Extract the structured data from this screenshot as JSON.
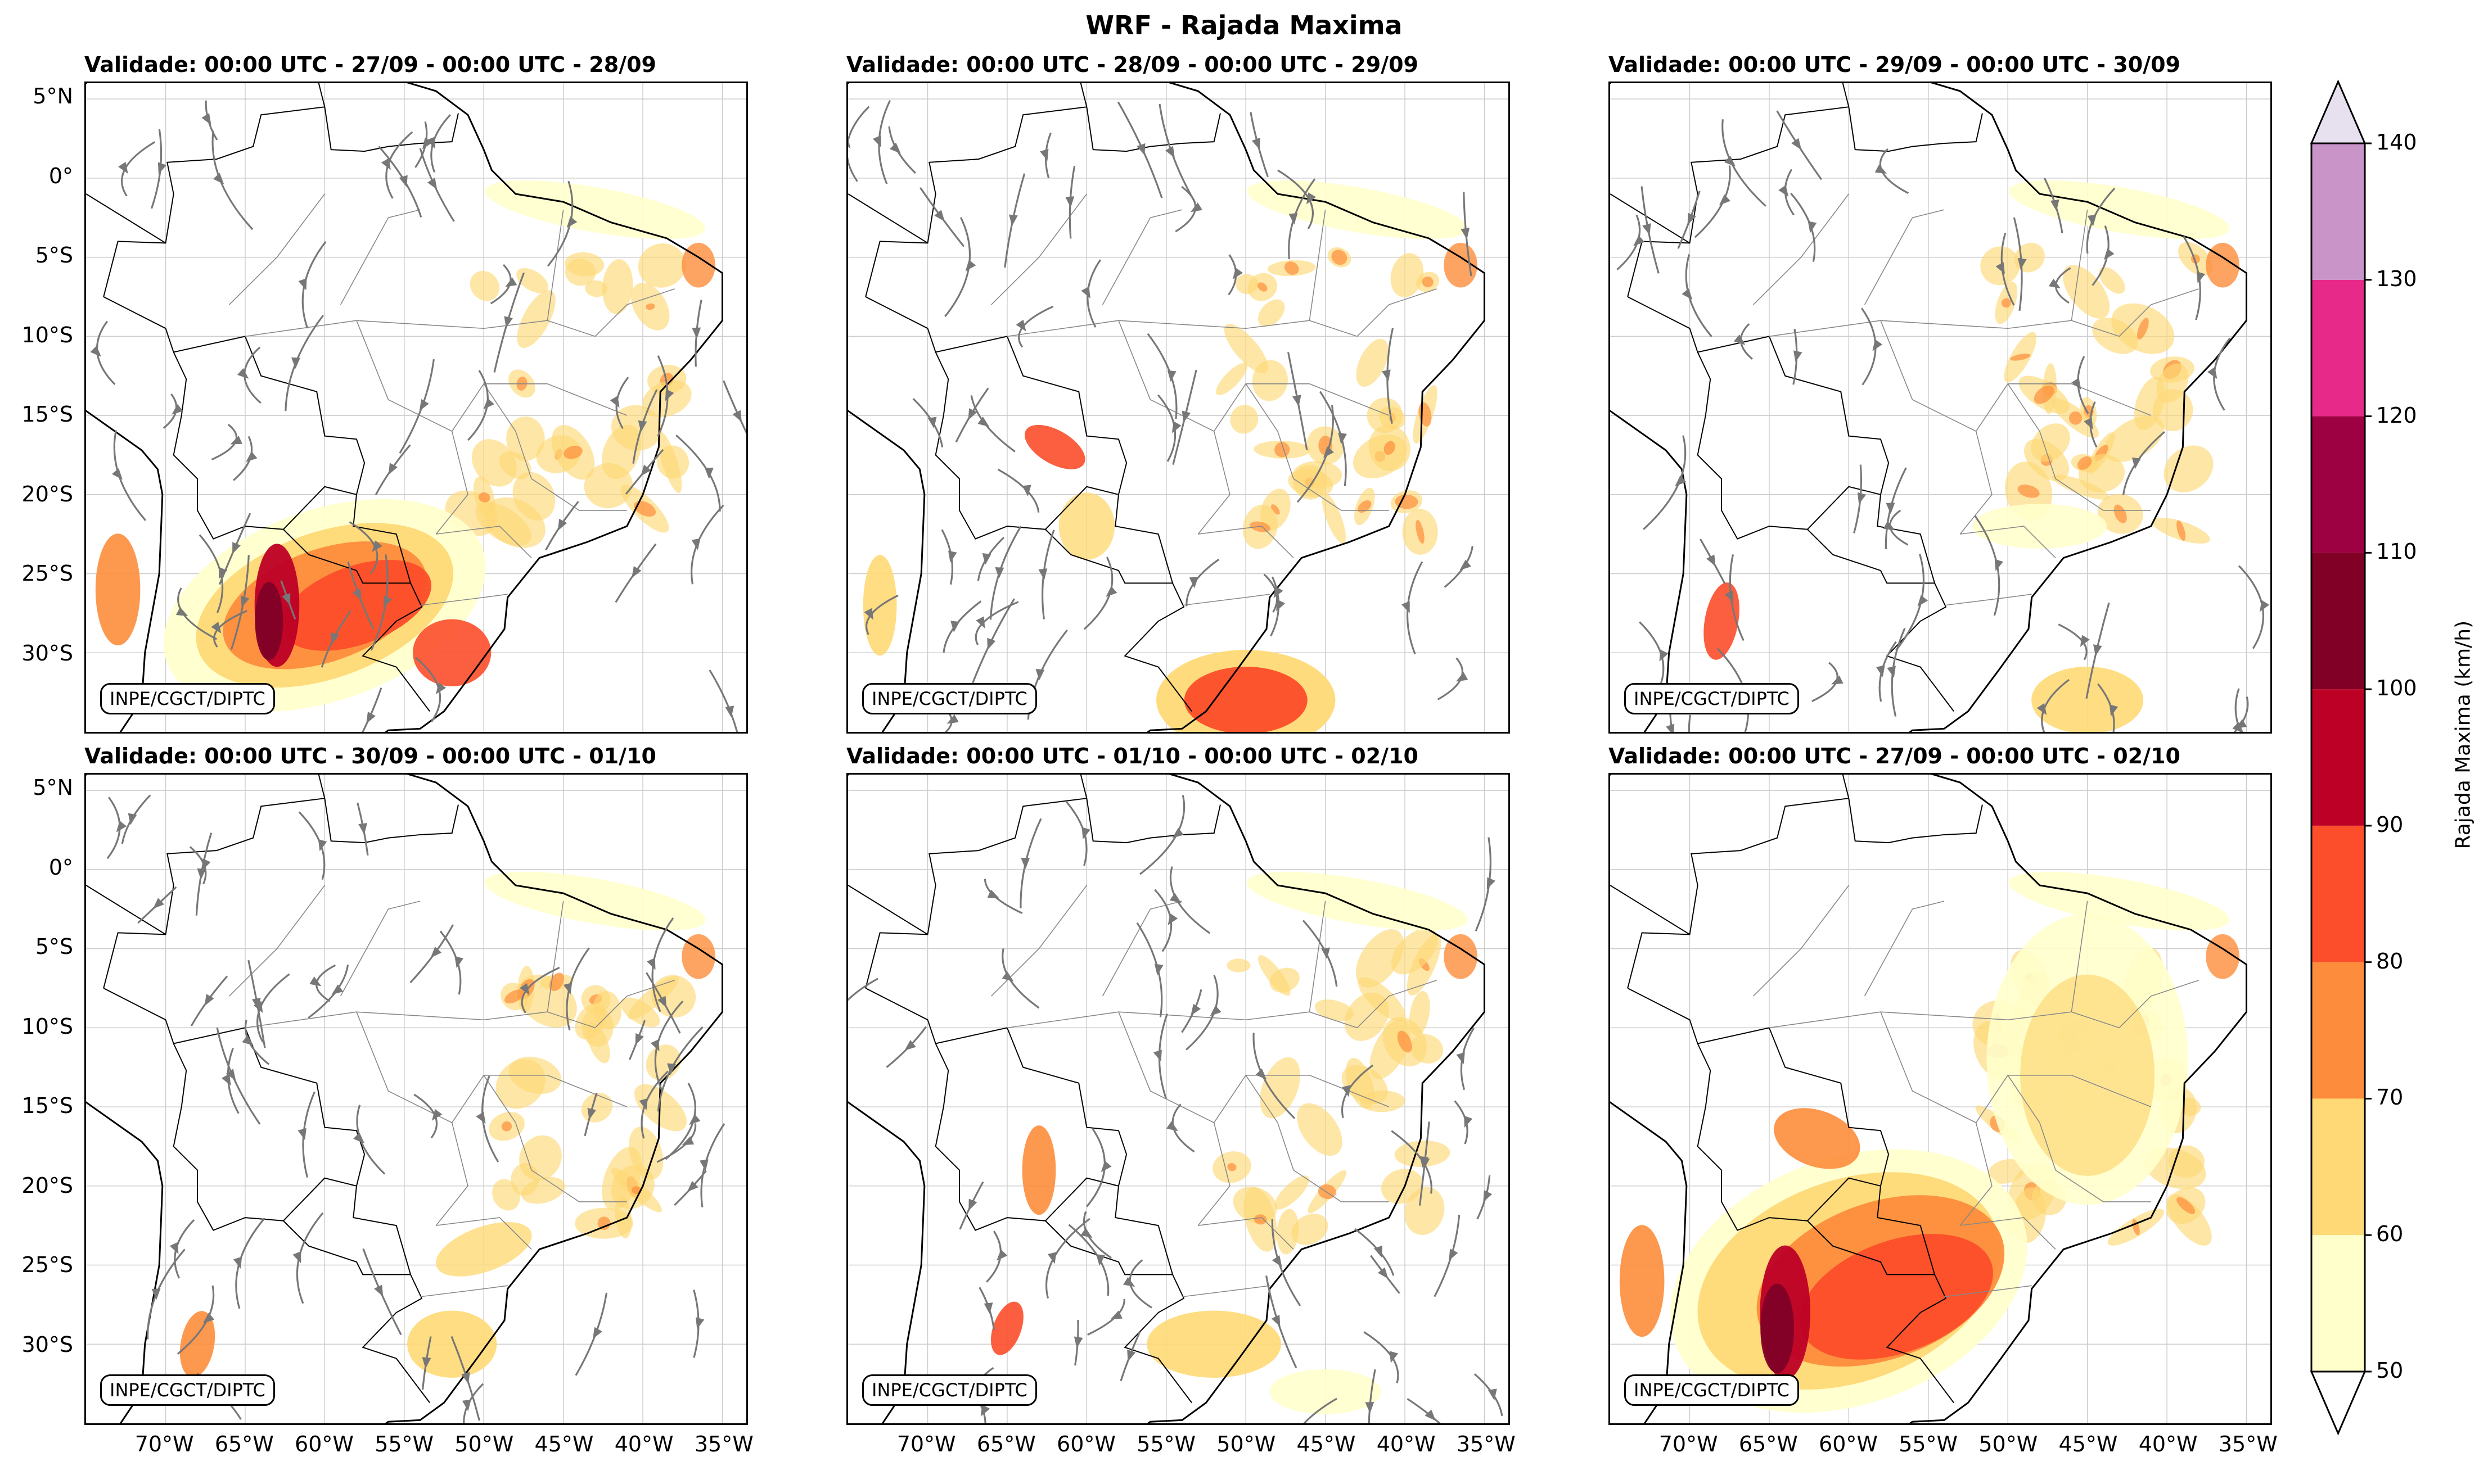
{
  "title": "WRF - Rajada Maxima",
  "credit": "INPE/CGCT/DIPTC",
  "panels": [
    {
      "title": "Validade: 00:00 UTC - 27/09 - 00:00 UTC - 28/09",
      "intensity": "very high",
      "streamlines": true
    },
    {
      "title": "Validade: 00:00 UTC - 28/09 - 00:00 UTC - 29/09",
      "intensity": "moderate",
      "streamlines": true
    },
    {
      "title": "Validade: 00:00 UTC - 29/09 - 00:00 UTC - 30/09",
      "intensity": "low",
      "streamlines": true
    },
    {
      "title": "Validade: 00:00 UTC - 30/09 - 00:00 UTC - 01/10",
      "intensity": "low",
      "streamlines": true
    },
    {
      "title": "Validade: 00:00 UTC - 01/10 - 00:00 UTC - 02/10",
      "intensity": "moderate",
      "streamlines": true
    },
    {
      "title": "Validade: 00:00 UTC - 27/09 - 00:00 UTC - 02/10",
      "intensity": "accumulated maximum",
      "streamlines": false
    }
  ],
  "lat_ticks": [
    "5°N",
    "0°",
    "5°S",
    "10°S",
    "15°S",
    "20°S",
    "25°S",
    "30°S"
  ],
  "lon_ticks": [
    "70°W",
    "65°W",
    "60°W",
    "55°W",
    "50°W",
    "45°W",
    "40°W",
    "35°W"
  ],
  "colorbar": {
    "label": "Rajada Maxima (km/h)",
    "ticks": [
      "50",
      "60",
      "70",
      "80",
      "90",
      "100",
      "110",
      "120",
      "130",
      "140"
    ],
    "colors": [
      "#ffffcc",
      "#fed976",
      "#fd8d3c",
      "#fc4e2a",
      "#bd0026",
      "#800026",
      "#9e0142",
      "#e7298a",
      "#c994c7",
      "#e7e1ef"
    ]
  }
}
